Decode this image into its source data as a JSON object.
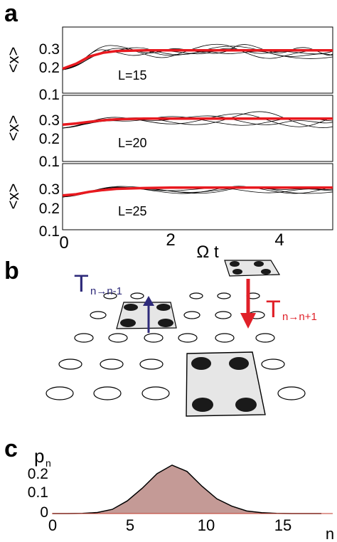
{
  "panel_a": {
    "label": "a",
    "ylabel": "<x>",
    "xlabel": "Ω t",
    "xticks": [
      "0",
      "2",
      "4"
    ],
    "yticks": [
      "0.3",
      "0.2",
      "0.1"
    ],
    "mean_color": "#e8191f",
    "sample_color": "#000000"
  },
  "panel_b": {
    "label": "b",
    "t_down": {
      "main": "T",
      "sub": "n→n-1",
      "color": "#2e2a7a"
    },
    "t_up": {
      "main": "T",
      "sub": "n→n+1",
      "color": "#e02028"
    }
  },
  "panel_c": {
    "label": "c",
    "ylabel_main": "p",
    "ylabel_sub": "n",
    "xlabel": "n",
    "yticks": [
      "0.2",
      "0.1",
      "0"
    ],
    "xticks": [
      "0",
      "5",
      "10",
      "15"
    ],
    "fill_color": "#c49a96"
  },
  "chart_data": [
    {
      "type": "line",
      "title": "",
      "annotation": "L=15",
      "xlabel": "",
      "ylabel": "<x>",
      "xlim": [
        0,
        5
      ],
      "ylim": [
        0.1,
        0.37
      ],
      "series": [
        {
          "x": [
            0,
            0.25,
            0.5,
            0.75,
            1,
            1.5,
            2,
            2.5,
            3,
            3.5,
            4,
            4.5,
            5
          ],
          "values": [
            0.2,
            0.22,
            0.25,
            0.265,
            0.272,
            0.275,
            0.275,
            0.275,
            0.275,
            0.275,
            0.275,
            0.275,
            0.275
          ]
        }
      ]
    },
    {
      "type": "line",
      "title": "",
      "annotation": "L=20",
      "xlabel": "",
      "ylabel": "<x>",
      "xlim": [
        0,
        5
      ],
      "ylim": [
        0.1,
        0.37
      ],
      "series": [
        {
          "x": [
            0,
            0.25,
            0.5,
            0.75,
            1,
            1.5,
            2,
            2.5,
            3,
            3.5,
            4,
            4.5,
            5
          ],
          "values": [
            0.25,
            0.255,
            0.262,
            0.268,
            0.272,
            0.275,
            0.275,
            0.275,
            0.275,
            0.275,
            0.275,
            0.275,
            0.275
          ]
        }
      ]
    },
    {
      "type": "line",
      "title": "",
      "annotation": "L=25",
      "xlabel": "Ω t",
      "ylabel": "<x>",
      "xlim": [
        0,
        5
      ],
      "ylim": [
        0.1,
        0.37
      ],
      "series": [
        {
          "x": [
            0,
            0.25,
            0.5,
            0.75,
            1,
            1.5,
            2,
            2.5,
            3,
            3.5,
            4,
            4.5,
            5
          ],
          "values": [
            0.24,
            0.245,
            0.255,
            0.262,
            0.267,
            0.27,
            0.272,
            0.272,
            0.272,
            0.272,
            0.272,
            0.272,
            0.272
          ]
        }
      ]
    },
    {
      "type": "area",
      "title": "",
      "xlabel": "n",
      "ylabel": "p_n",
      "xlim": [
        0,
        18
      ],
      "ylim": [
        0,
        0.25
      ],
      "x": [
        0,
        1,
        2,
        3,
        4,
        5,
        6,
        7,
        8,
        9,
        10,
        11,
        12,
        13,
        14,
        15,
        16,
        17,
        18
      ],
      "values": [
        0,
        0,
        0.001,
        0.005,
        0.02,
        0.06,
        0.12,
        0.19,
        0.23,
        0.2,
        0.13,
        0.07,
        0.035,
        0.012,
        0.004,
        0.001,
        0,
        0,
        0
      ]
    }
  ]
}
